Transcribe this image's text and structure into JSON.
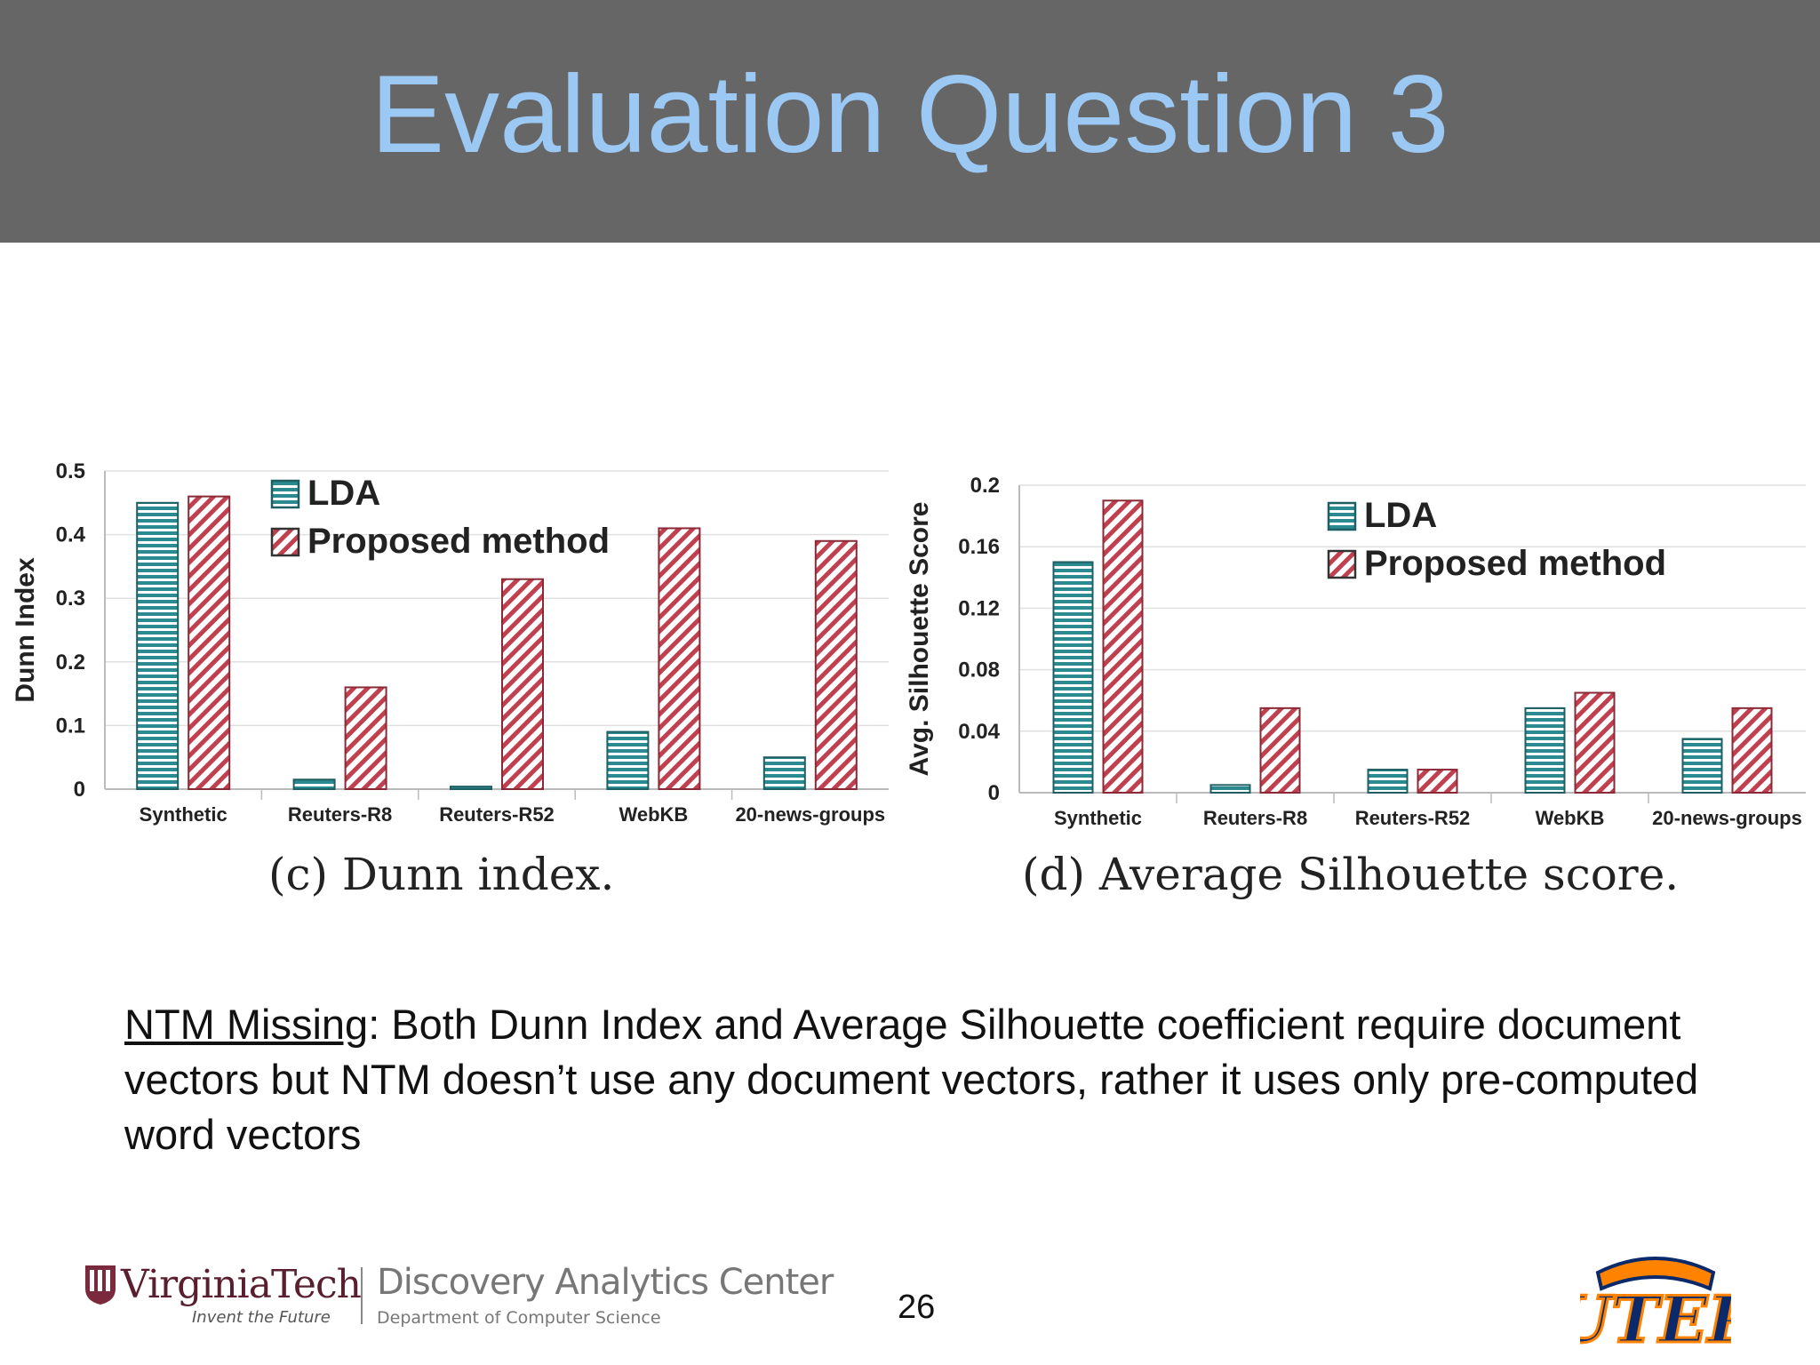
{
  "slide": {
    "title": "Evaluation Question 3",
    "body_lead": "NTM Missing",
    "body_rest": ": Both Dunn Index and Average Silhouette coefficient require document vectors but NTM doesn’t use any document vectors, rather it uses only pre-computed word vectors",
    "page_number": "26"
  },
  "footer": {
    "vt_name": "VirginiaTech",
    "vt_tagline": "Invent the Future",
    "dac_name": "Discovery Analytics Center",
    "dac_dept": "Department of Computer Science",
    "utep_logo": "UTEP"
  },
  "colors": {
    "header_bg": "#666666",
    "title": "#9cc8f4",
    "lda": "#2a8a8f",
    "proposed": "#c0404f"
  },
  "chart_data": [
    {
      "type": "bar",
      "caption": "(c) Dunn index.",
      "ylabel": "Dunn Index",
      "xlabel": "",
      "categories": [
        "Synthetic",
        "Reuters-R8",
        "Reuters-R52",
        "WebKB",
        "20-news-groups"
      ],
      "series": [
        {
          "name": "LDA",
          "values": [
            0.45,
            0.015,
            0.004,
            0.09,
            0.05
          ]
        },
        {
          "name": "Proposed method",
          "values": [
            0.46,
            0.16,
            0.33,
            0.41,
            0.39
          ]
        }
      ],
      "ylim": [
        0,
        0.5
      ],
      "yticks": [
        "0",
        "0.1",
        "0.2",
        "0.3",
        "0.4",
        "0.5"
      ],
      "grid": true,
      "legend": "top-left"
    },
    {
      "type": "bar",
      "caption": "(d) Average Silhouette score.",
      "ylabel": "Avg. Silhouette Score",
      "xlabel": "",
      "categories": [
        "Synthetic",
        "Reuters-R8",
        "Reuters-R52",
        "WebKB",
        "20-news-groups"
      ],
      "series": [
        {
          "name": "LDA",
          "values": [
            0.15,
            0.005,
            0.015,
            0.055,
            0.035
          ]
        },
        {
          "name": "Proposed method",
          "values": [
            0.19,
            0.055,
            0.015,
            0.065,
            0.055
          ]
        }
      ],
      "ylim": [
        0,
        0.2
      ],
      "yticks": [
        "0",
        "0.04",
        "0.08",
        "0.12",
        "0.16",
        "0.2"
      ],
      "grid": true,
      "legend": "top-right"
    }
  ]
}
